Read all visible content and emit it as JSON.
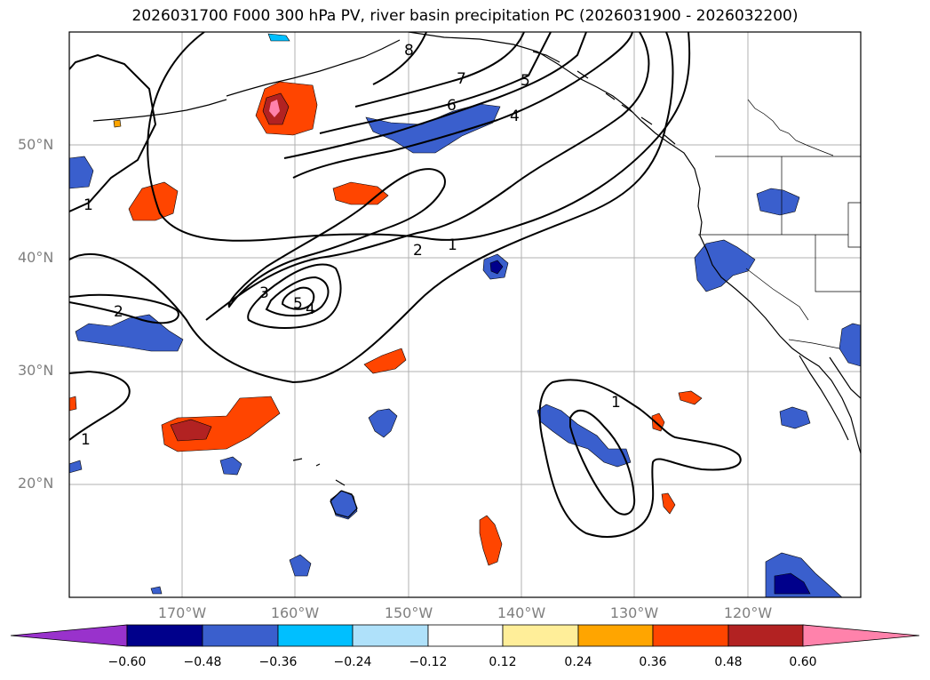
{
  "title": "2026031700 F000 300 hPa PV, river basin precipitation PC (2026031900 - 2026032200)",
  "map": {
    "projection": "plate carree",
    "lon_range": [
      -180,
      -110
    ],
    "lat_range": [
      10,
      60
    ],
    "lat_ticks": [
      "50°N",
      "40°N",
      "30°N",
      "20°N"
    ],
    "lon_ticks": [
      "170°W",
      "160°W",
      "150°W",
      "140°W",
      "130°W",
      "120°W"
    ],
    "grid": true,
    "contour_field": "300 hPa PV",
    "contour_labels": [
      "1",
      "1",
      "1",
      "1",
      "2",
      "2",
      "3",
      "4",
      "4",
      "5",
      "5",
      "6",
      "7",
      "8"
    ],
    "fill_field": "river basin precipitation PC"
  },
  "colorbar": {
    "ticks": [
      "−0.60",
      "−0.48",
      "−0.36",
      "−0.24",
      "−0.12",
      "0.12",
      "0.24",
      "0.36",
      "0.48",
      "0.60"
    ],
    "colors": [
      "#9932cc",
      "#00008b",
      "#3a5fcd",
      "#00bfff",
      "#afe1fa",
      "#ffffff",
      "#ffee99",
      "#ffa500",
      "#ff4500",
      "#b22222",
      "#ff82ab"
    ],
    "extend": "both"
  }
}
